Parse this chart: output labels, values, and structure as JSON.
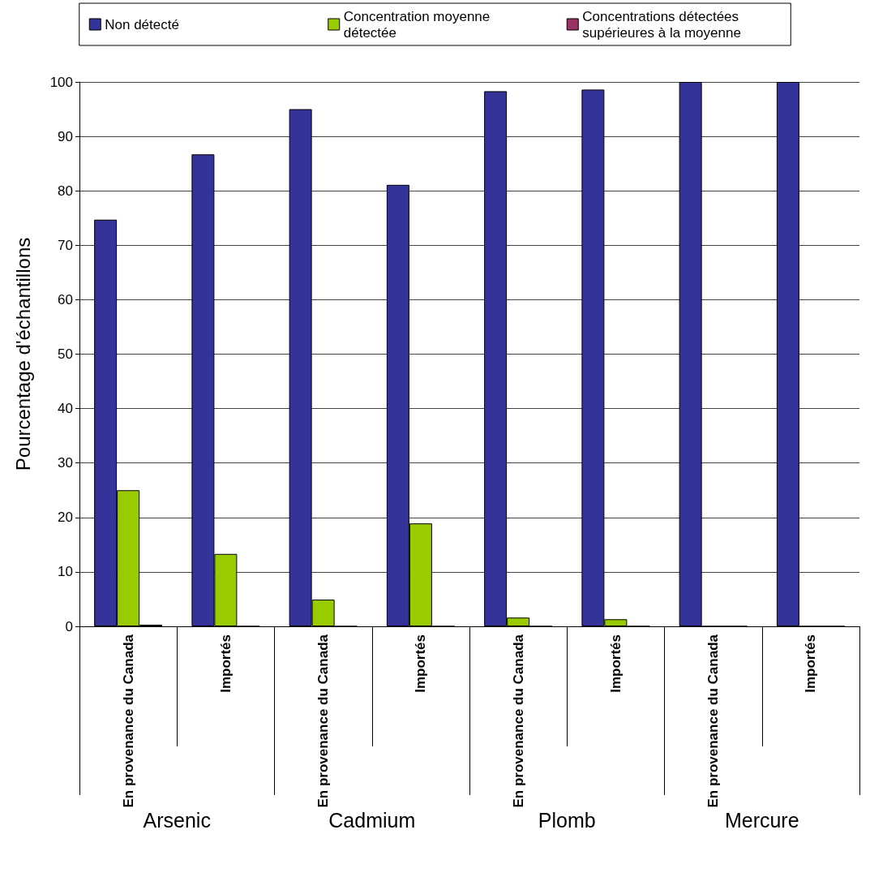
{
  "chart_data": {
    "type": "bar",
    "categories": [
      "En provenance du Canada",
      "Importés",
      "En provenance du Canada",
      "Importés",
      "En provenance du Canada",
      "Importés",
      "En provenance du Canada",
      "Importés"
    ],
    "annotations": [
      "Arsenic",
      "Cadmium",
      "Plomb",
      "Mercure"
    ],
    "ylabel": "Pourcentage d'échantillons",
    "series": [
      {
        "name": "Non détecté",
        "color": "#333399",
        "values": [
          74.7,
          86.7,
          95,
          81.1,
          98.3,
          98.6,
          100,
          100
        ]
      },
      {
        "name": "Concentration moyenne détectée",
        "color": "#99cc00",
        "values": [
          25,
          13.3,
          4.9,
          18.9,
          1.6,
          1.3,
          0,
          0
        ]
      },
      {
        "name": "Concentrations détectées supérieures à la moyenne",
        "color": "#993366",
        "values": [
          0.3,
          0,
          0,
          0,
          0,
          0,
          0,
          0
        ]
      }
    ],
    "ylim": [
      0,
      100
    ],
    "yticks": [
      0,
      10,
      20,
      30,
      40,
      50,
      60,
      70,
      80,
      90,
      100
    ],
    "grid": "y",
    "legend": "top"
  }
}
